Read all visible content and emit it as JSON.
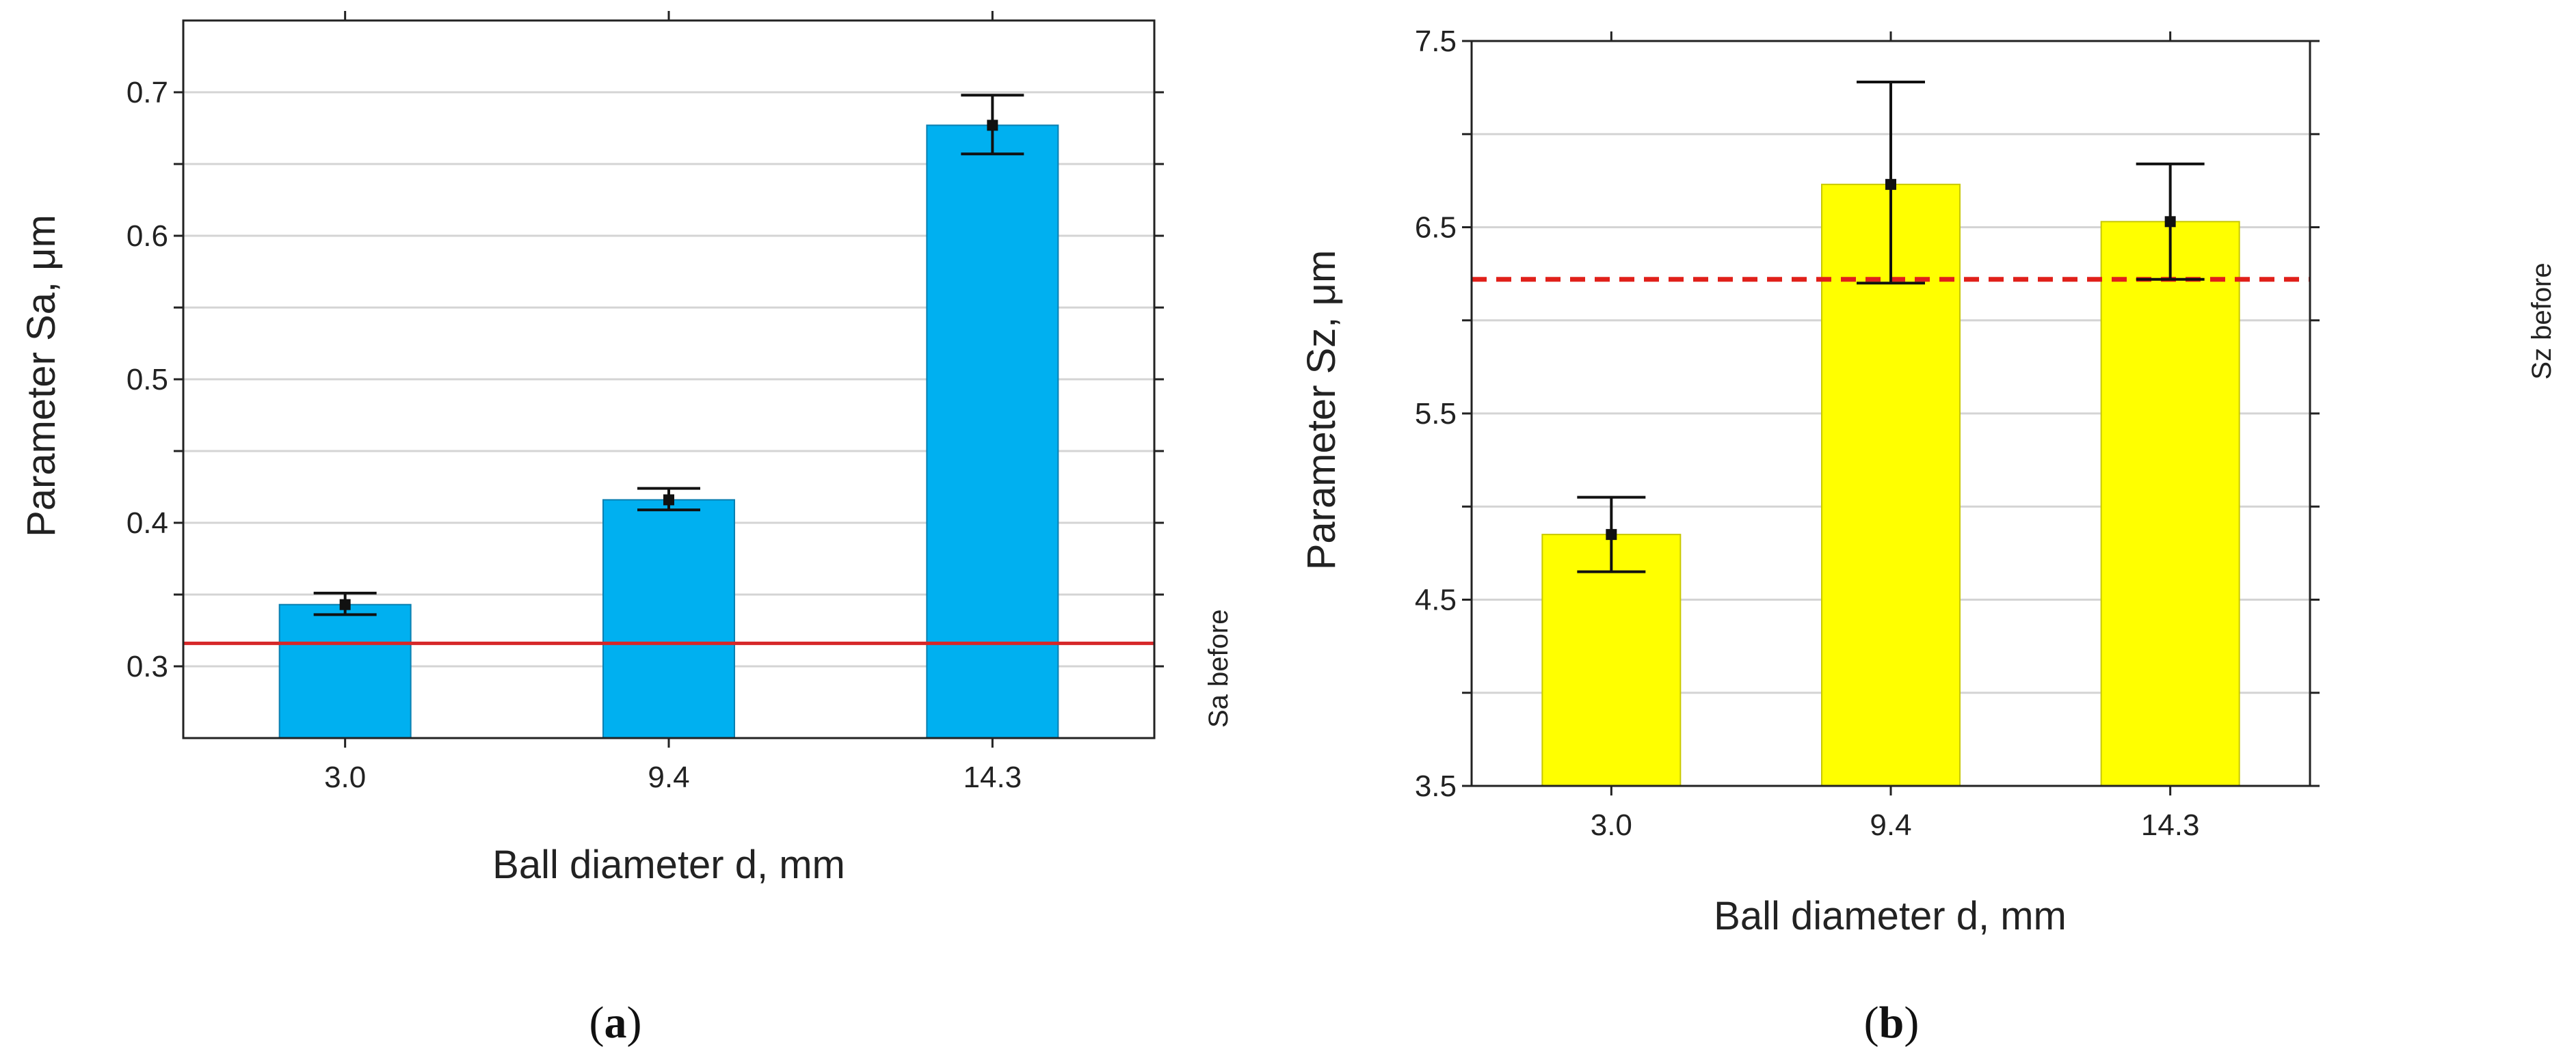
{
  "chart_data": [
    {
      "type": "bar",
      "panel_label": "a",
      "categories": [
        "3.0",
        "9.4",
        "14.3"
      ],
      "values": [
        0.343,
        0.416,
        0.677
      ],
      "error_bars": [
        [
          0.336,
          0.351
        ],
        [
          0.409,
          0.424
        ],
        [
          0.657,
          0.698
        ]
      ],
      "bar_color": "#00b0f0",
      "xlabel": "Ball diameter d, mm",
      "ylabel": "Parameter Sa, μm",
      "ylim": [
        0.25,
        0.75
      ],
      "yticks": [
        0.3,
        0.4,
        0.5,
        0.6,
        0.7
      ],
      "ytick_labels": [
        "0.3",
        "0.4",
        "0.5",
        "0.6",
        "0.7"
      ],
      "minor_yticks": [
        0.35,
        0.45,
        0.55,
        0.65
      ],
      "grid": true,
      "reference_line": {
        "value": 0.316,
        "label": "Sa before",
        "color": "#d62728",
        "style": "solid"
      }
    },
    {
      "type": "bar",
      "panel_label": "b",
      "categories": [
        "3.0",
        "9.4",
        "14.3"
      ],
      "values": [
        4.85,
        6.73,
        6.53
      ],
      "error_bars": [
        [
          4.65,
          5.05
        ],
        [
          6.2,
          7.28
        ],
        [
          6.22,
          6.84
        ]
      ],
      "bar_color": "#ffff00",
      "xlabel": "Ball diameter d, mm",
      "ylabel": "Parameter Sz, μm",
      "ylim": [
        3.5,
        7.5
      ],
      "yticks": [
        3.5,
        4.5,
        5.5,
        6.5,
        7.5
      ],
      "ytick_labels": [
        "3.5",
        "4.5",
        "5.5",
        "6.5",
        "7.5"
      ],
      "minor_yticks": [
        4.0,
        5.0,
        6.0,
        7.0
      ],
      "grid": true,
      "reference_line": {
        "value": 6.22,
        "label": "Sz before",
        "color": "#e0201a",
        "style": "dashed"
      }
    }
  ]
}
